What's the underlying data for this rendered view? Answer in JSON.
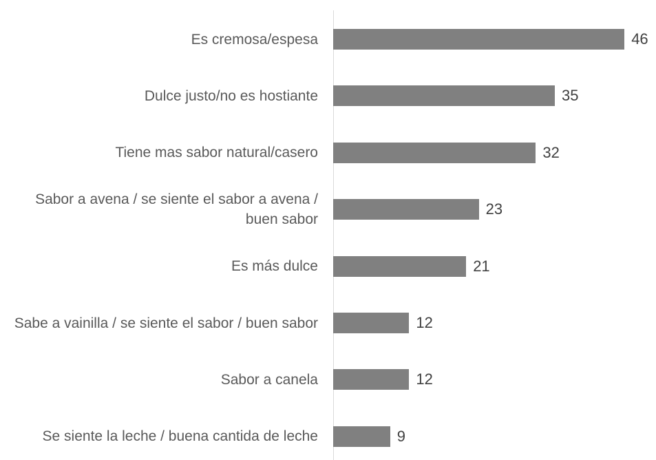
{
  "chart_data": {
    "type": "bar",
    "orientation": "horizontal",
    "categories": [
      "Es cremosa/espesa",
      "Dulce justo/no es hostiante",
      "Tiene mas sabor natural/casero",
      "Sabor a avena / se siente el sabor a avena / buen sabor",
      "Es más dulce",
      "Sabe a vainilla / se siente el sabor / buen sabor",
      "Sabor a canela",
      "Se siente la leche / buena cantida de leche"
    ],
    "values": [
      46,
      35,
      32,
      23,
      21,
      12,
      12,
      9
    ],
    "color": "#808080"
  }
}
